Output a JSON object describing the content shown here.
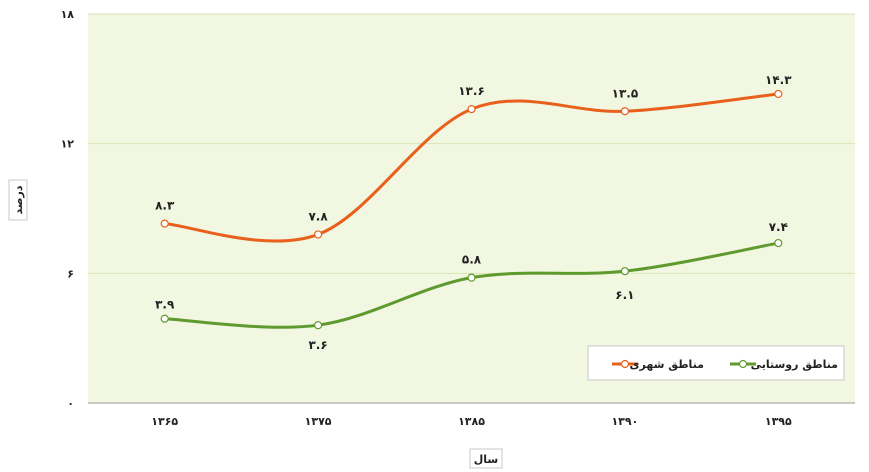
{
  "chart_data": {
    "type": "line",
    "categories": [
      "۱۳۶۵",
      "۱۳۷۵",
      "۱۳۸۵",
      "۱۳۹۰",
      "۱۳۹۵"
    ],
    "series": [
      {
        "name": "مناطق شهری",
        "values": [
          8.3,
          7.8,
          13.6,
          13.5,
          14.3
        ],
        "labels": [
          "۸.۳",
          "۷.۸",
          "۱۳.۶",
          "۱۳.۵",
          "۱۴.۳"
        ],
        "color": "#E8601C"
      },
      {
        "name": "مناطق روستایی",
        "values": [
          3.9,
          3.6,
          5.8,
          6.1,
          7.4
        ],
        "labels": [
          "۳.۹",
          "۳.۶",
          "۵.۸",
          "۶.۱",
          "۷.۴"
        ],
        "color": "#5E9A2E"
      }
    ],
    "yticks": [
      {
        "value": 0,
        "label": "۰"
      },
      {
        "value": 6,
        "label": "۶"
      },
      {
        "value": 12,
        "label": "۱۲"
      },
      {
        "value": 18,
        "label": "۱۸"
      }
    ],
    "ylim": [
      0,
      18
    ],
    "xlabel": "سال",
    "ylabel": "درصد",
    "grid": true,
    "legend_position": "bottom-right",
    "plot_background": "#F1F7E1",
    "grid_color": "#D8E6B5"
  }
}
